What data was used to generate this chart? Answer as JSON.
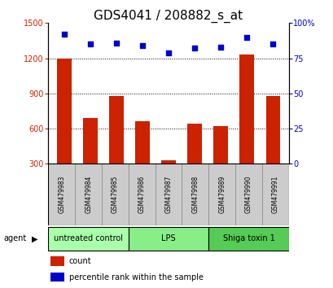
{
  "title": "GDS4041 / 208882_s_at",
  "samples": [
    "GSM479983",
    "GSM479984",
    "GSM479985",
    "GSM479986",
    "GSM479987",
    "GSM479988",
    "GSM479989",
    "GSM479990",
    "GSM479991"
  ],
  "counts": [
    1200,
    690,
    880,
    660,
    330,
    640,
    620,
    1230,
    880
  ],
  "percentiles": [
    92,
    85,
    86,
    84,
    79,
    82,
    83,
    90,
    85
  ],
  "groups": [
    {
      "label": "untreated control",
      "start": 0,
      "end": 3,
      "color": "#aaffaa"
    },
    {
      "label": "LPS",
      "start": 3,
      "end": 6,
      "color": "#88ee88"
    },
    {
      "label": "Shiga toxin 1",
      "start": 6,
      "end": 9,
      "color": "#55cc55"
    }
  ],
  "ylim_left": [
    300,
    1500
  ],
  "ylim_right": [
    0,
    100
  ],
  "yticks_left": [
    300,
    600,
    900,
    1200,
    1500
  ],
  "yticks_right": [
    0,
    25,
    50,
    75,
    100
  ],
  "bar_color": "#cc2200",
  "dot_color": "#0000cc",
  "background_plot": "#ffffff",
  "background_label": "#cccccc",
  "legend_count": "count",
  "legend_percentile": "percentile rank within the sample",
  "title_fontsize": 11,
  "tick_fontsize": 7,
  "sample_fontsize": 5.5,
  "group_fontsize": 7,
  "legend_fontsize": 7
}
